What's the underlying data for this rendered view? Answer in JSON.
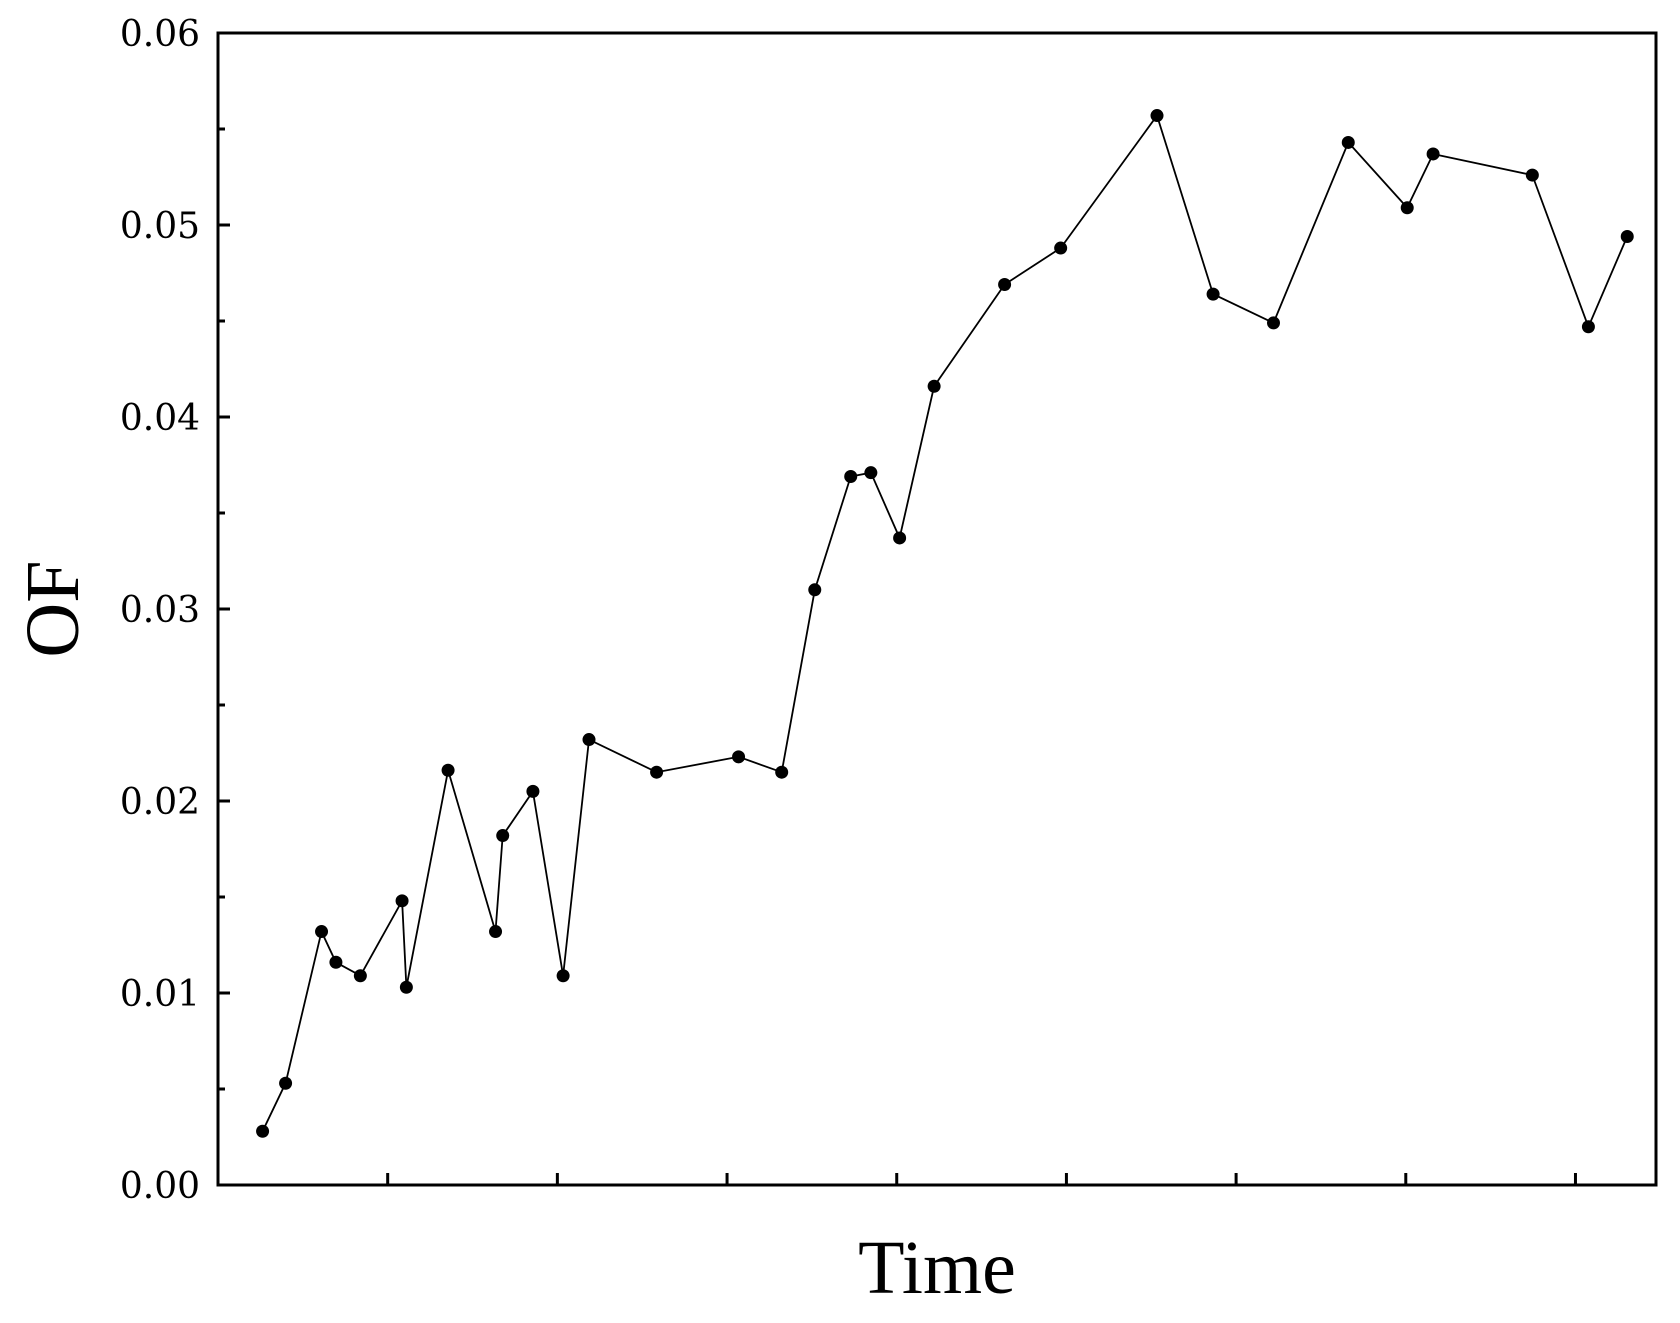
{
  "chart_data": {
    "type": "line",
    "title": "",
    "xlabel": "Time",
    "ylabel": "OF",
    "xlim": [
      0,
      100
    ],
    "ylim": [
      0,
      0.06
    ],
    "y_ticks": [
      "0.00",
      "0.01",
      "0.02",
      "0.03",
      "0.04",
      "0.05",
      "0.06"
    ],
    "y_minor_ticks": [
      0.005,
      0.015,
      0.025,
      0.035,
      0.045,
      0.055
    ],
    "x_ticks": [
      11.8,
      23.6,
      35.4,
      47.2,
      59.0,
      70.8,
      82.6,
      94.4
    ],
    "x_tick_labels_shown": false,
    "legend": "none",
    "grid": false,
    "series": [
      {
        "marker": "filled-circle",
        "color": "#000000",
        "x": [
          3.1,
          4.7,
          7.2,
          8.2,
          9.9,
          12.8,
          13.1,
          16.0,
          19.3,
          19.8,
          21.9,
          24.0,
          25.8,
          30.5,
          36.2,
          39.2,
          41.5,
          44.0,
          45.4,
          47.4,
          49.8,
          54.7,
          58.6,
          65.3,
          69.2,
          73.4,
          78.6,
          82.7,
          84.5,
          91.4,
          95.3,
          98.0
        ],
        "y": [
          0.0028,
          0.0053,
          0.0132,
          0.0116,
          0.0109,
          0.0148,
          0.0103,
          0.0216,
          0.0132,
          0.0182,
          0.0205,
          0.0109,
          0.0232,
          0.0215,
          0.0223,
          0.0215,
          0.031,
          0.0369,
          0.0371,
          0.0337,
          0.0416,
          0.0469,
          0.0488,
          0.0557,
          0.0464,
          0.0449,
          0.0543,
          0.0509,
          0.0537,
          0.0526,
          0.0447,
          0.0494
        ]
      }
    ]
  }
}
